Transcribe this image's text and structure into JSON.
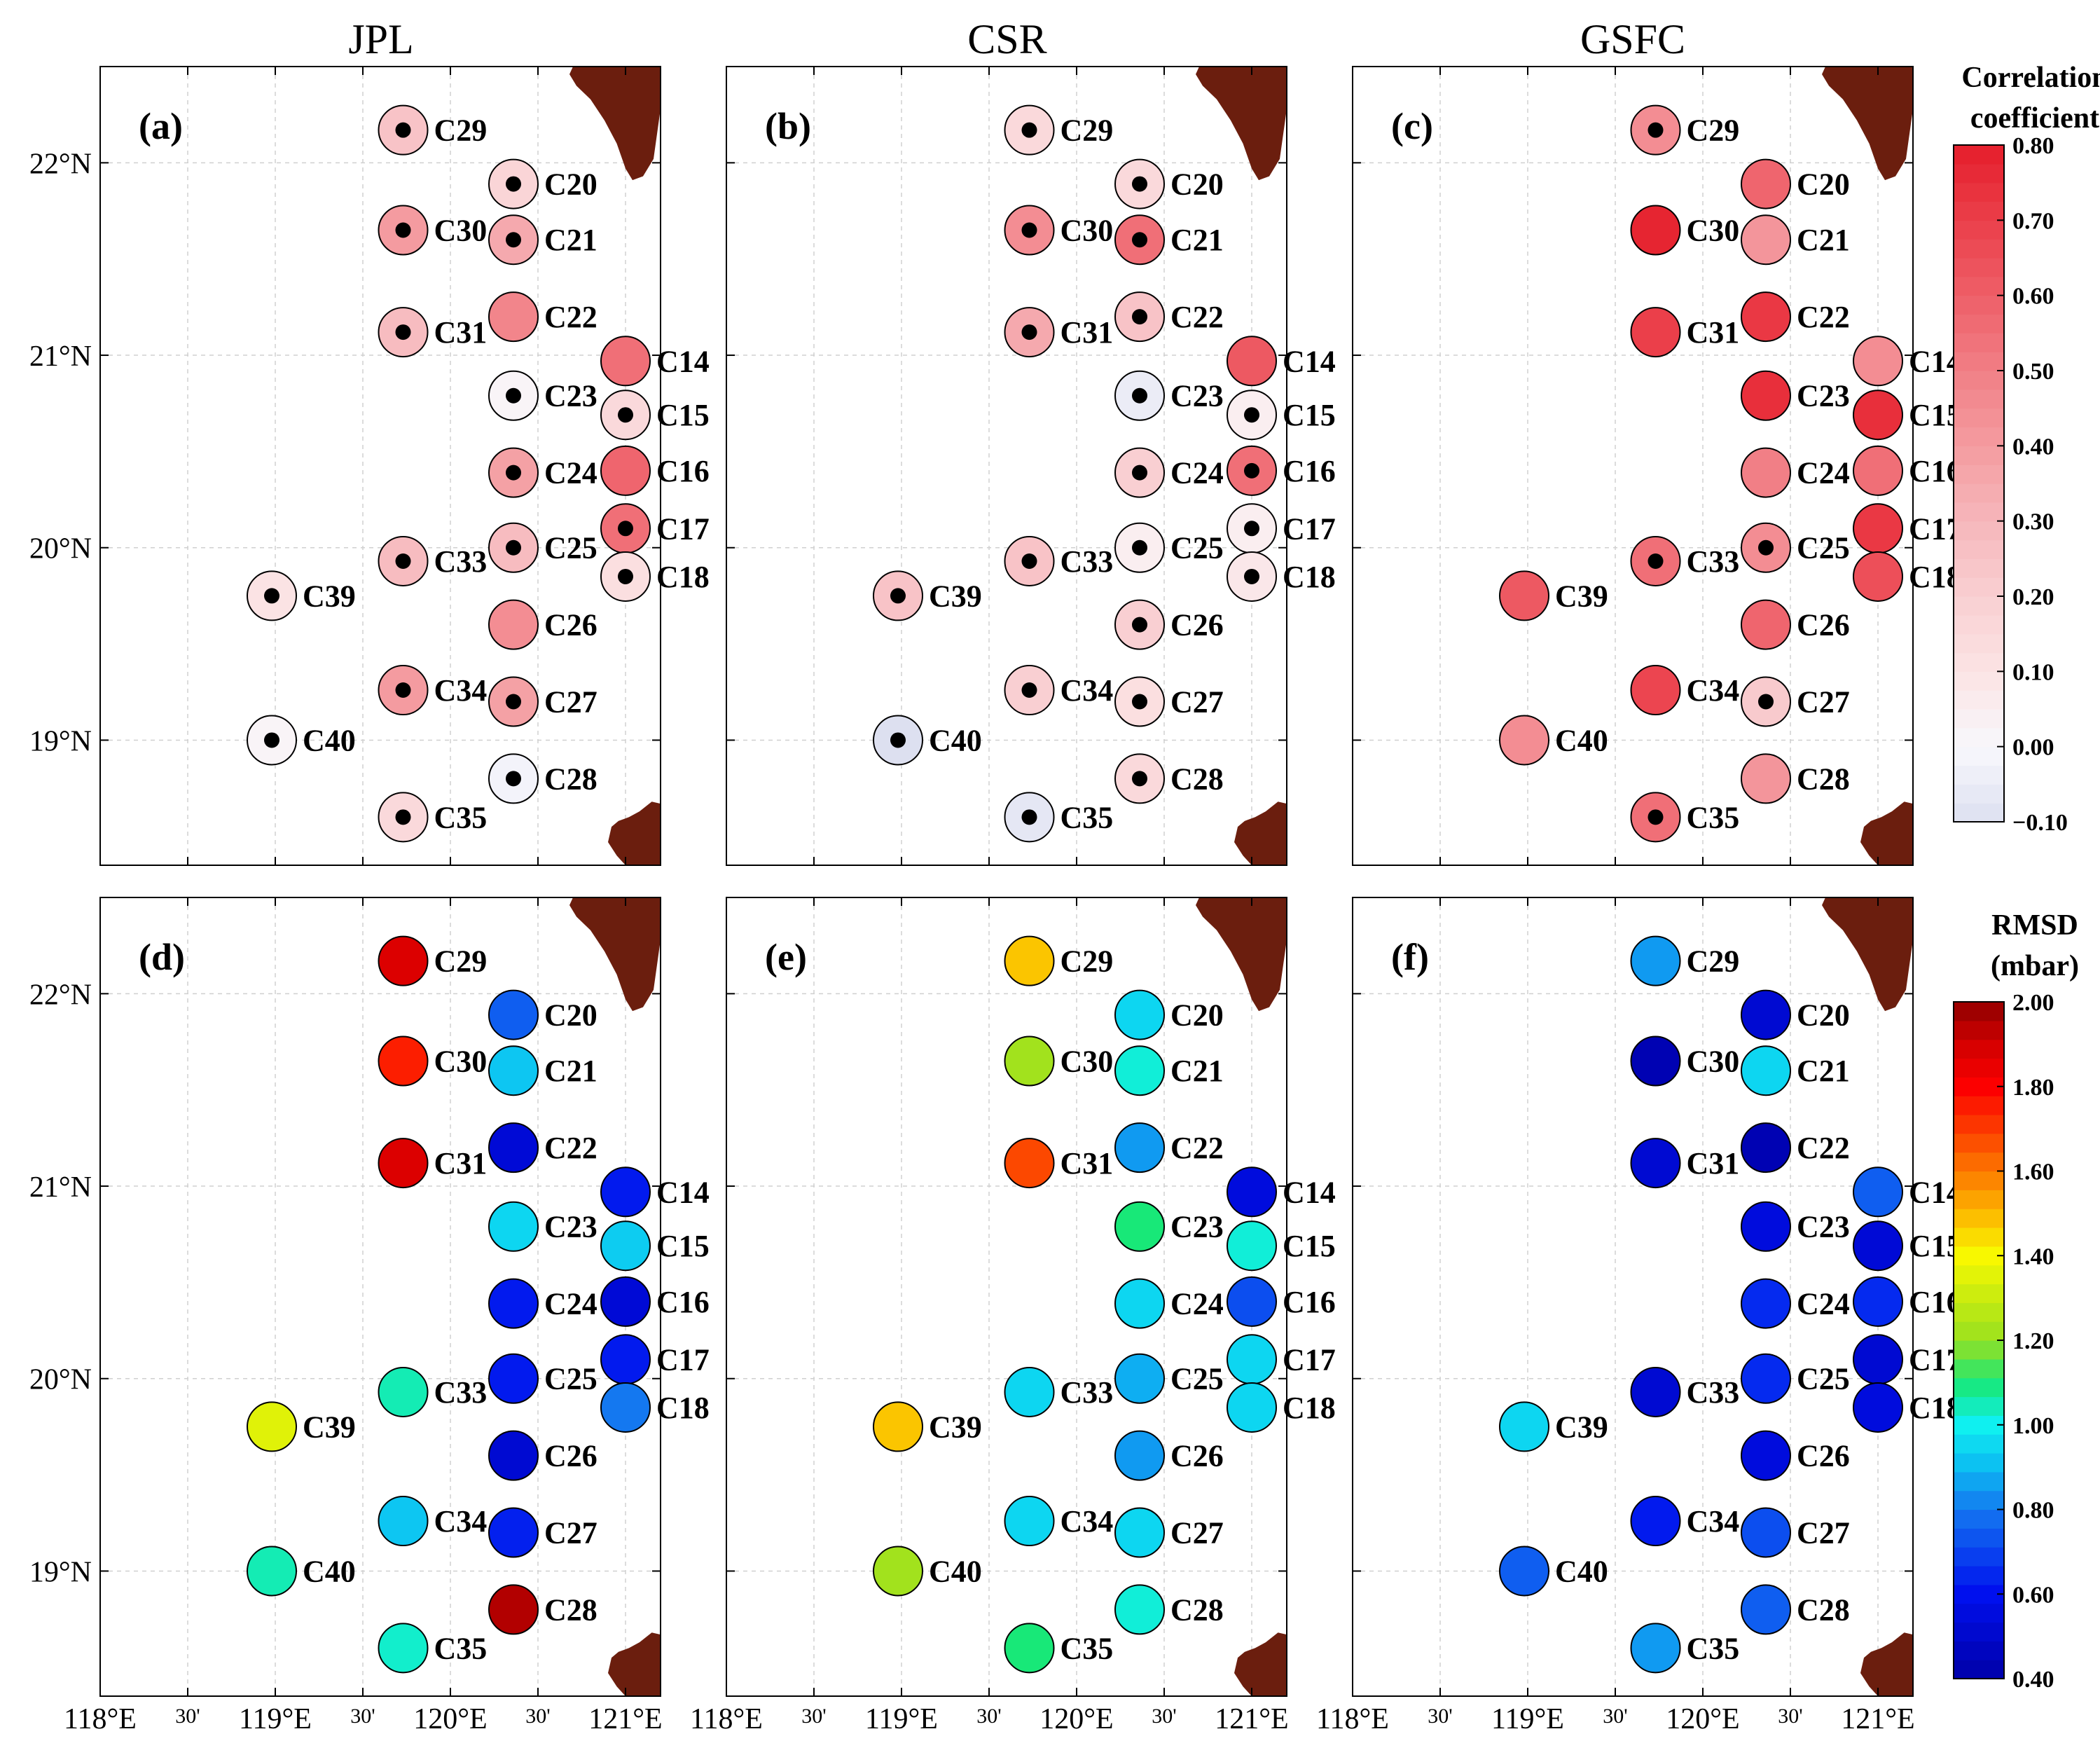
{
  "titles": [
    "JPL",
    "CSR",
    "GSFC"
  ],
  "x_ticks": [
    "118°E",
    "30'",
    "119°E",
    "30'",
    "120°E",
    "30'",
    "121°E"
  ],
  "y_ticks": [
    "22°N",
    "21°N",
    "20°N",
    "19°N"
  ],
  "colorbar_corr": {
    "title_line1": "Correlation",
    "title_line2": "coefficient",
    "ticks": [
      "0.80",
      "0.70",
      "0.60",
      "0.50",
      "0.40",
      "0.30",
      "0.20",
      "0.10",
      "0.00",
      "−0.10"
    ],
    "range": [
      -0.1,
      0.8
    ]
  },
  "colorbar_rmsd": {
    "title_line1": "RMSD",
    "title_line2": "(mbar)",
    "ticks": [
      "2.00",
      "1.80",
      "1.60",
      "1.40",
      "1.20",
      "1.00",
      "0.80",
      "0.60",
      "0.40"
    ],
    "range": [
      0.4,
      2.0
    ]
  },
  "chart_data": {
    "type": "scatter",
    "map_extent": {
      "lon": [
        118.0,
        121.2
      ],
      "lat": [
        18.35,
        22.5
      ]
    },
    "stations": [
      {
        "id": "C14",
        "lon": 121.0,
        "lat": 20.97
      },
      {
        "id": "C15",
        "lon": 121.0,
        "lat": 20.69
      },
      {
        "id": "C16",
        "lon": 121.0,
        "lat": 20.4
      },
      {
        "id": "C17",
        "lon": 121.0,
        "lat": 20.1
      },
      {
        "id": "C18",
        "lon": 121.0,
        "lat": 19.85
      },
      {
        "id": "C20",
        "lon": 120.36,
        "lat": 21.89
      },
      {
        "id": "C21",
        "lon": 120.36,
        "lat": 21.6
      },
      {
        "id": "C22",
        "lon": 120.36,
        "lat": 21.2
      },
      {
        "id": "C23",
        "lon": 120.36,
        "lat": 20.79
      },
      {
        "id": "C24",
        "lon": 120.36,
        "lat": 20.39
      },
      {
        "id": "C25",
        "lon": 120.36,
        "lat": 20.0
      },
      {
        "id": "C26",
        "lon": 120.36,
        "lat": 19.6
      },
      {
        "id": "C27",
        "lon": 120.36,
        "lat": 19.2
      },
      {
        "id": "C28",
        "lon": 120.36,
        "lat": 18.8
      },
      {
        "id": "C29",
        "lon": 119.73,
        "lat": 22.17
      },
      {
        "id": "C30",
        "lon": 119.73,
        "lat": 21.65
      },
      {
        "id": "C31",
        "lon": 119.73,
        "lat": 21.12
      },
      {
        "id": "C33",
        "lon": 119.73,
        "lat": 19.93
      },
      {
        "id": "C34",
        "lon": 119.73,
        "lat": 19.26
      },
      {
        "id": "C35",
        "lon": 119.73,
        "lat": 18.6
      },
      {
        "id": "C39",
        "lon": 118.98,
        "lat": 19.75
      },
      {
        "id": "C40",
        "lon": 118.98,
        "lat": 19.0
      }
    ],
    "panels": [
      {
        "label": "(a)",
        "metric": "correlation",
        "values": {
          "C14": 0.55,
          "C15": 0.15,
          "C16": 0.58,
          "C17": 0.55,
          "C18": 0.12,
          "C20": 0.17,
          "C21": 0.35,
          "C22": 0.48,
          "C23": 0.02,
          "C24": 0.38,
          "C25": 0.28,
          "C26": 0.45,
          "C27": 0.38,
          "C28": -0.02,
          "C29": 0.25,
          "C30": 0.4,
          "C31": 0.28,
          "C33": 0.28,
          "C34": 0.4,
          "C35": 0.15,
          "C39": 0.1,
          "C40": 0.02
        },
        "dots": [
          "C15",
          "C17",
          "C18",
          "C20",
          "C21",
          "C23",
          "C24",
          "C25",
          "C27",
          "C28",
          "C29",
          "C30",
          "C31",
          "C33",
          "C34",
          "C35",
          "C39",
          "C40"
        ]
      },
      {
        "label": "(b)",
        "metric": "correlation",
        "values": {
          "C14": 0.62,
          "C15": 0.05,
          "C16": 0.55,
          "C17": 0.05,
          "C18": 0.08,
          "C20": 0.15,
          "C21": 0.55,
          "C22": 0.25,
          "C23": -0.05,
          "C24": 0.2,
          "C25": 0.05,
          "C26": 0.2,
          "C27": 0.12,
          "C28": 0.15,
          "C29": 0.15,
          "C30": 0.45,
          "C31": 0.35,
          "C33": 0.25,
          "C34": 0.2,
          "C35": -0.07,
          "C39": 0.25,
          "C40": -0.1
        },
        "dots": [
          "C15",
          "C16",
          "C17",
          "C18",
          "C20",
          "C21",
          "C22",
          "C23",
          "C24",
          "C25",
          "C26",
          "C27",
          "C28",
          "C29",
          "C30",
          "C31",
          "C33",
          "C34",
          "C35",
          "C39",
          "C40"
        ]
      },
      {
        "label": "(c)",
        "metric": "correlation",
        "values": {
          "C14": 0.45,
          "C15": 0.75,
          "C16": 0.55,
          "C17": 0.72,
          "C18": 0.65,
          "C20": 0.58,
          "C21": 0.42,
          "C22": 0.72,
          "C23": 0.75,
          "C24": 0.5,
          "C25": 0.45,
          "C26": 0.58,
          "C27": 0.22,
          "C28": 0.42,
          "C29": 0.45,
          "C30": 0.78,
          "C31": 0.7,
          "C33": 0.55,
          "C34": 0.68,
          "C35": 0.55,
          "C39": 0.62,
          "C40": 0.45
        },
        "dots": [
          "C25",
          "C27",
          "C29",
          "C33",
          "C35"
        ]
      },
      {
        "label": "(d)",
        "metric": "rmsd",
        "values": {
          "C14": 0.62,
          "C15": 0.93,
          "C16": 0.53,
          "C17": 0.62,
          "C18": 0.8,
          "C20": 0.75,
          "C21": 0.92,
          "C22": 0.53,
          "C23": 0.95,
          "C24": 0.62,
          "C25": 0.62,
          "C26": 0.52,
          "C27": 0.63,
          "C28": 1.95,
          "C29": 1.88,
          "C30": 1.75,
          "C31": 1.88,
          "C33": 1.05,
          "C34": 0.92,
          "C35": 1.03,
          "C39": 1.35,
          "C40": 1.05
        },
        "dots": []
      },
      {
        "label": "(e)",
        "metric": "rmsd",
        "values": {
          "C14": 0.55,
          "C15": 1.02,
          "C16": 0.72,
          "C17": 0.95,
          "C18": 0.95,
          "C20": 0.95,
          "C21": 1.02,
          "C22": 0.85,
          "C23": 1.1,
          "C24": 0.95,
          "C25": 0.88,
          "C26": 0.85,
          "C27": 0.95,
          "C28": 1.02,
          "C29": 1.48,
          "C30": 1.22,
          "C31": 1.68,
          "C33": 0.95,
          "C34": 0.95,
          "C35": 1.1,
          "C39": 1.48,
          "C40": 1.22
        },
        "dots": []
      },
      {
        "label": "(f)",
        "metric": "rmsd",
        "values": {
          "C14": 0.75,
          "C15": 0.53,
          "C16": 0.65,
          "C17": 0.52,
          "C18": 0.55,
          "C20": 0.52,
          "C21": 0.95,
          "C22": 0.43,
          "C23": 0.55,
          "C24": 0.65,
          "C25": 0.65,
          "C26": 0.55,
          "C27": 0.72,
          "C28": 0.75,
          "C29": 0.85,
          "C30": 0.43,
          "C31": 0.52,
          "C33": 0.52,
          "C34": 0.62,
          "C35": 0.85,
          "C39": 0.95,
          "C40": 0.75
        },
        "dots": []
      }
    ]
  }
}
